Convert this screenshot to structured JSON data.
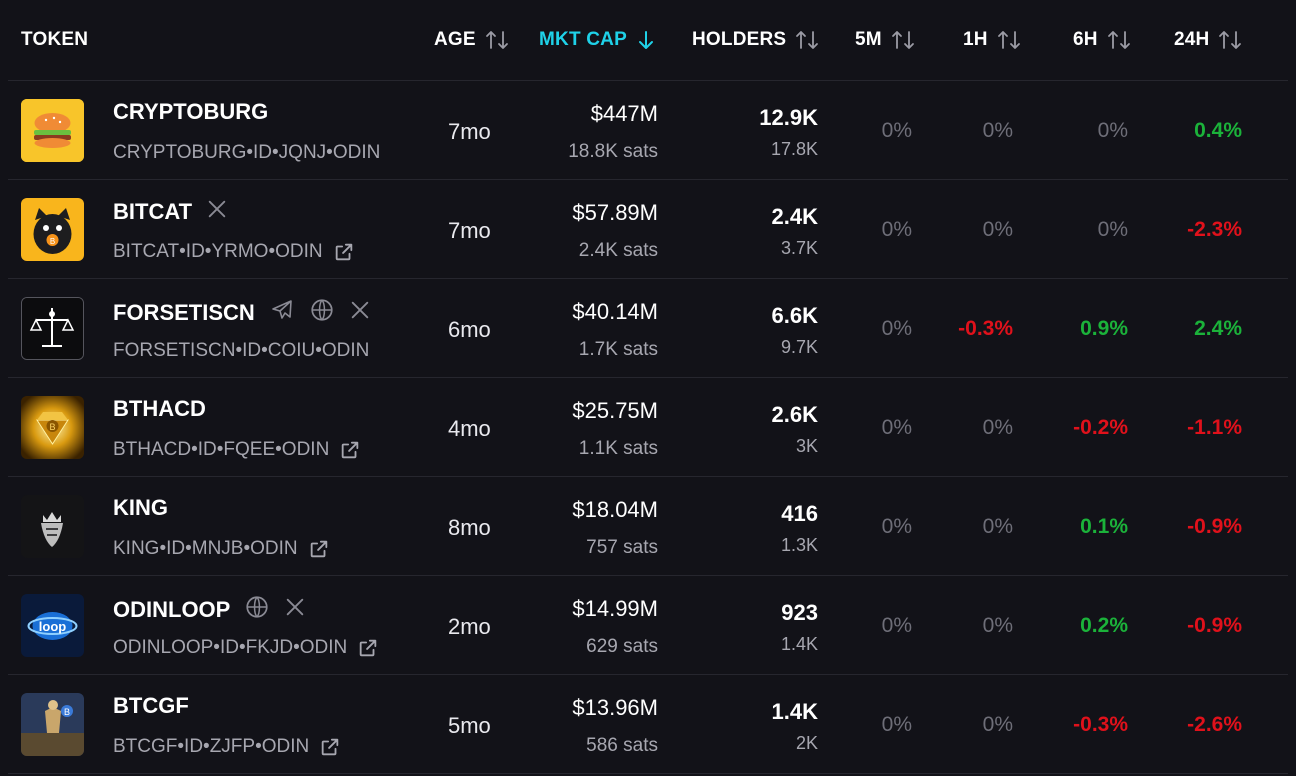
{
  "header": {
    "token": "TOKEN",
    "age": "AGE",
    "mkt_cap": "MKT CAP",
    "holders": "HOLDERS",
    "m5": "5M",
    "h1": "1H",
    "h6": "6H",
    "h24": "24H"
  },
  "accent_color": "#1fd1e8",
  "positive_color": "#1bb23a",
  "negative_color": "#e0111b",
  "rows": [
    {
      "name": "CRYPTOBURG",
      "id": "CRYPTOBURG•ID•JQNJ•ODIN",
      "age": "7mo",
      "cap": "$447M",
      "sats": "18.8K sats",
      "holders": "12.9K",
      "holders2": "17.8K",
      "m5": "0%",
      "h1": "0%",
      "h6": "0%",
      "h24": "0.4%",
      "socials": []
    },
    {
      "name": "BITCAT",
      "id": "BITCAT•ID•YRMO•ODIN",
      "age": "7mo",
      "cap": "$57.89M",
      "sats": "2.4K sats",
      "holders": "2.4K",
      "holders2": "3.7K",
      "m5": "0%",
      "h1": "0%",
      "h6": "0%",
      "h24": "-2.3%",
      "socials": [
        "x-icon"
      ]
    },
    {
      "name": "FORSETISCN",
      "id": "FORSETISCN•ID•COIU•ODIN",
      "age": "6mo",
      "cap": "$40.14M",
      "sats": "1.7K sats",
      "holders": "6.6K",
      "holders2": "9.7K",
      "m5": "0%",
      "h1": "-0.3%",
      "h6": "0.9%",
      "h24": "2.4%",
      "socials": [
        "telegram-icon",
        "globe-icon",
        "x-icon"
      ]
    },
    {
      "name": "BTHACD",
      "id": "BTHACD•ID•FQEE•ODIN",
      "age": "4mo",
      "cap": "$25.75M",
      "sats": "1.1K sats",
      "holders": "2.6K",
      "holders2": "3K",
      "m5": "0%",
      "h1": "0%",
      "h6": "-0.2%",
      "h24": "-1.1%",
      "socials": []
    },
    {
      "name": "KING",
      "id": "KING•ID•MNJB•ODIN",
      "age": "8mo",
      "cap": "$18.04M",
      "sats": "757 sats",
      "holders": "416",
      "holders2": "1.3K",
      "m5": "0%",
      "h1": "0%",
      "h6": "0.1%",
      "h24": "-0.9%",
      "socials": []
    },
    {
      "name": "ODINLOOP",
      "id": "ODINLOOP•ID•FKJD•ODIN",
      "age": "2mo",
      "cap": "$14.99M",
      "sats": "629 sats",
      "holders": "923",
      "holders2": "1.4K",
      "m5": "0%",
      "h1": "0%",
      "h6": "0.2%",
      "h24": "-0.9%",
      "socials": [
        "globe-icon",
        "x-icon"
      ]
    },
    {
      "name": "BTCGF",
      "id": "BTCGF•ID•ZJFP•ODIN",
      "age": "5mo",
      "cap": "$13.96M",
      "sats": "586 sats",
      "holders": "1.4K",
      "holders2": "2K",
      "m5": "0%",
      "h1": "0%",
      "h6": "-0.3%",
      "h24": "-2.6%",
      "socials": []
    }
  ]
}
